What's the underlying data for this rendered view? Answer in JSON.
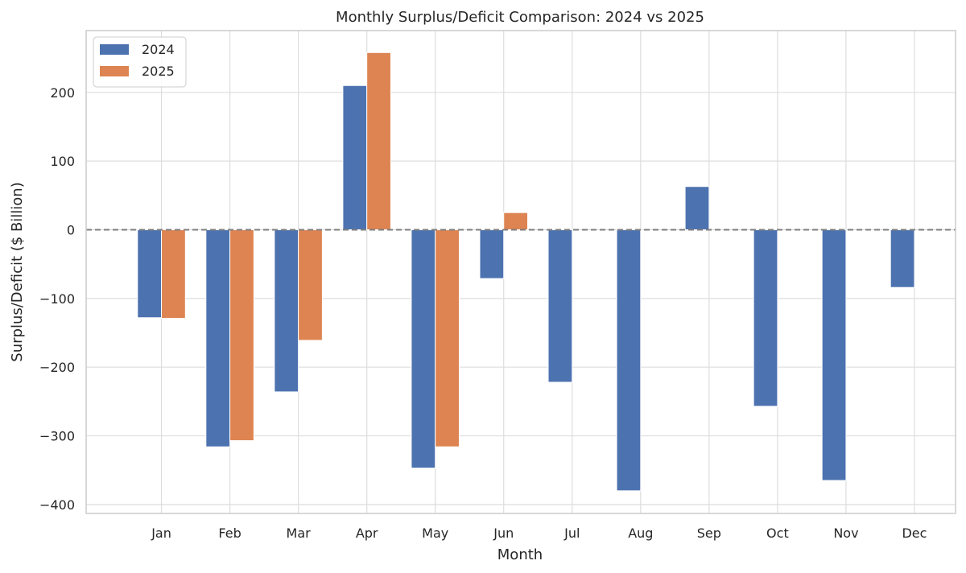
{
  "chart_data": {
    "type": "bar",
    "title": "Monthly Surplus/Deficit Comparison: 2024 vs 2025",
    "xlabel": "Month",
    "ylabel": "Surplus/Deficit ($ Billion)",
    "categories": [
      "Jan",
      "Feb",
      "Mar",
      "Apr",
      "May",
      "Jun",
      "Jul",
      "Aug",
      "Sep",
      "Oct",
      "Nov",
      "Dec"
    ],
    "series": [
      {
        "name": "2024",
        "color": "#4c72b0",
        "values": [
          -128,
          -316,
          -236,
          210,
          -347,
          -71,
          -222,
          -380,
          63,
          -257,
          -365,
          -84
        ]
      },
      {
        "name": "2025",
        "color": "#dd8452",
        "values": [
          -129,
          -307,
          -161,
          258,
          -316,
          25,
          null,
          null,
          null,
          null,
          null,
          null
        ]
      }
    ],
    "ylim": [
      -413,
      290
    ],
    "yticks": [
      -400,
      -300,
      -200,
      -100,
      0,
      100,
      200
    ],
    "ytick_labels": [
      "−400",
      "−300",
      "−200",
      "−100",
      "0",
      "100",
      "200"
    ],
    "reference_line": {
      "y": 0,
      "style": "dashed",
      "color": "#7f7f7f"
    },
    "grid": true,
    "legend_position": "top-left"
  }
}
